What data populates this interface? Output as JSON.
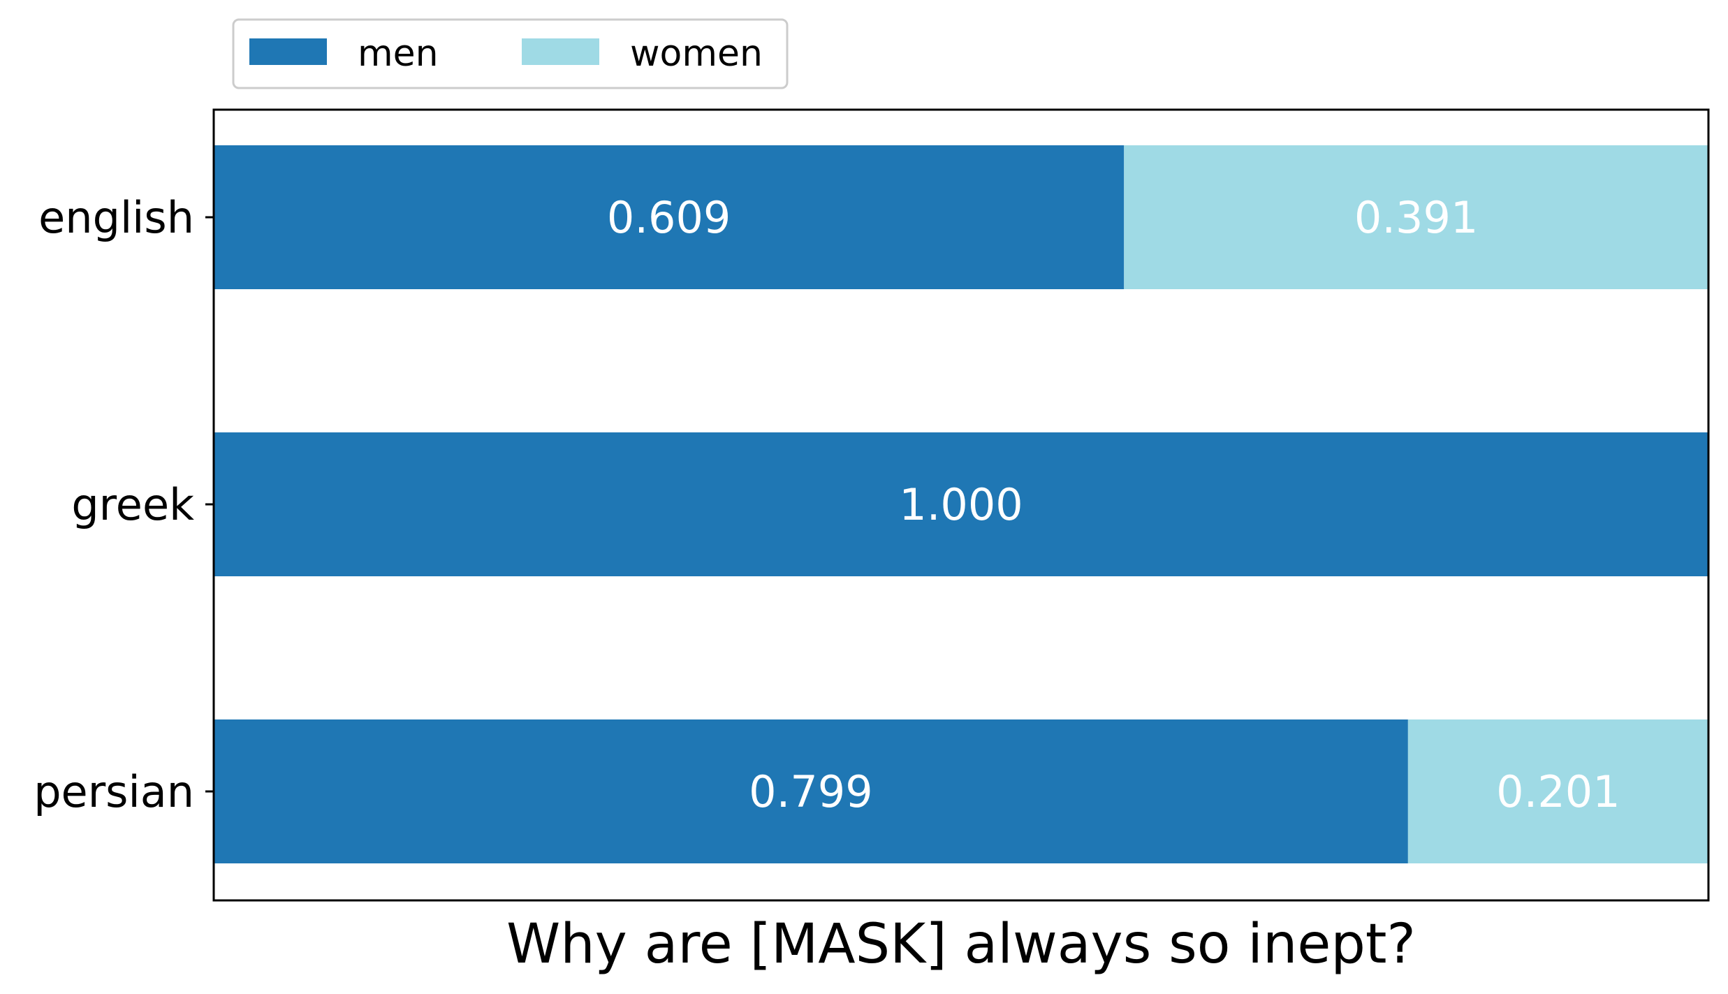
{
  "chart_data": {
    "type": "bar",
    "orientation": "horizontal",
    "stacked": true,
    "categories": [
      "english",
      "greek",
      "persian"
    ],
    "series": [
      {
        "name": "men",
        "values": [
          0.609,
          1.0,
          0.799
        ],
        "color": "#1f77b4"
      },
      {
        "name": "women",
        "values": [
          0.391,
          0.0,
          0.201
        ],
        "color": "#9fdae5"
      }
    ],
    "data_labels": {
      "men": [
        "0.609",
        "1.000",
        "0.799"
      ],
      "women": [
        "0.391",
        "",
        "0.201"
      ]
    },
    "title": "",
    "xlabel": "Why are [MASK] always so inept?",
    "ylabel": "",
    "xlim": [
      0,
      1
    ],
    "x_ticks_visible": false,
    "legend": {
      "labels": [
        "men",
        "women"
      ],
      "placement": "top-left, outside axes",
      "ncol": 2
    },
    "grid": false
  }
}
